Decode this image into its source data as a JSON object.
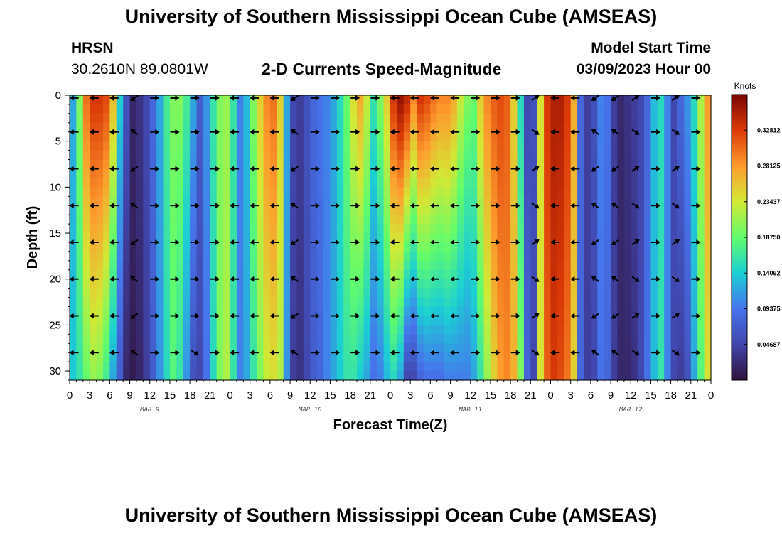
{
  "header": {
    "title": "University of Southern Mississippi Ocean Cube (AMSEAS)",
    "station": "HRSN",
    "coords": "30.2610N  89.0801W",
    "plot_title": "2-D Currents Speed-Magnitude",
    "start_label": "Model Start Time",
    "start_value": "03/09/2023 Hour 00"
  },
  "footer": {
    "title": "University of Southern Mississippi Ocean Cube (AMSEAS)"
  },
  "chart_data": {
    "type": "heatmap",
    "title": "2-D Currents Speed-Magnitude",
    "xlabel": "Forecast Time(Z)",
    "ylabel": "Depth (ft)",
    "xlim": [
      0,
      96
    ],
    "ylim": [
      31,
      0
    ],
    "x_ticks": [
      0,
      3,
      6,
      9,
      12,
      15,
      18,
      21,
      24,
      27,
      30,
      33,
      36,
      39,
      42,
      45,
      48,
      51,
      54,
      57,
      60,
      63,
      66,
      69,
      72,
      75,
      78,
      81,
      84,
      87,
      90,
      93,
      96
    ],
    "x_tick_labels": [
      "0",
      "3",
      "6",
      "9",
      "12",
      "15",
      "18",
      "21",
      "0",
      "3",
      "6",
      "9",
      "12",
      "15",
      "18",
      "21",
      "0",
      "3",
      "6",
      "9",
      "12",
      "15",
      "18",
      "21",
      "0",
      "3",
      "6",
      "9",
      "12",
      "15",
      "18",
      "21",
      "0"
    ],
    "day_labels": [
      {
        "x": 12,
        "label": "MAR 9"
      },
      {
        "x": 36,
        "label": "MAR 10"
      },
      {
        "x": 60,
        "label": "MAR 11"
      },
      {
        "x": 84,
        "label": "MAR 12"
      }
    ],
    "y_ticks": [
      0,
      5,
      10,
      15,
      20,
      25,
      30
    ],
    "y_tick_labels": [
      "0",
      "5",
      "10",
      "15",
      "20",
      "25",
      "30"
    ],
    "colorbar": {
      "unit": "Knots",
      "min": 0,
      "max": 0.375,
      "ticks": [
        0.04687,
        0.09375,
        0.14062,
        0.1875,
        0.23437,
        0.28125,
        0.32812
      ],
      "tick_labels": [
        "0.04687",
        "0.09375",
        "0.14062",
        "0.18750",
        "0.23437",
        "0.28125",
        "0.32812"
      ]
    },
    "speed_profile": {
      "hours": [
        0,
        1,
        2,
        3,
        4,
        5,
        6,
        7,
        8,
        9,
        10,
        11,
        12,
        13,
        14,
        15,
        16,
        17,
        18,
        19,
        20,
        21,
        22,
        23,
        24,
        25,
        26,
        27,
        28,
        29,
        30,
        31,
        32,
        33,
        34,
        35,
        36,
        37,
        38,
        39,
        40,
        41,
        42,
        43,
        44,
        45,
        46,
        47,
        48,
        49,
        50,
        51,
        52,
        53,
        54,
        55,
        56,
        57,
        58,
        59,
        60,
        61,
        62,
        63,
        64,
        65,
        66,
        67,
        68,
        69,
        70,
        71,
        72,
        73,
        74,
        75,
        76,
        77,
        78,
        79,
        80,
        81,
        82,
        83,
        84,
        85,
        86,
        87,
        88,
        89,
        90,
        91,
        92,
        93,
        94,
        95
      ],
      "surface_knots": [
        0.12,
        0.2,
        0.3,
        0.33,
        0.33,
        0.32,
        0.26,
        0.14,
        0.06,
        0.02,
        0.03,
        0.05,
        0.08,
        0.12,
        0.17,
        0.2,
        0.2,
        0.17,
        0.12,
        0.07,
        0.11,
        0.16,
        0.2,
        0.21,
        0.16,
        0.1,
        0.13,
        0.2,
        0.25,
        0.29,
        0.3,
        0.25,
        0.12,
        0.05,
        0.04,
        0.06,
        0.08,
        0.09,
        0.1,
        0.12,
        0.15,
        0.19,
        0.24,
        0.27,
        0.23,
        0.16,
        0.2,
        0.25,
        0.33,
        0.36,
        0.34,
        0.29,
        0.33,
        0.32,
        0.3,
        0.29,
        0.29,
        0.27,
        0.23,
        0.2,
        0.19,
        0.25,
        0.29,
        0.31,
        0.32,
        0.31,
        0.25,
        0.15,
        0.05,
        0.06,
        0.24,
        0.33,
        0.35,
        0.35,
        0.33,
        0.27,
        0.08,
        0.04,
        0.06,
        0.1,
        0.09,
        0.04,
        0.02,
        0.03,
        0.04,
        0.05,
        0.08,
        0.13,
        0.15,
        0.1,
        0.05,
        0.08,
        0.11,
        0.15,
        0.22,
        0.28
      ],
      "bottom_knots": [
        0.14,
        0.16,
        0.19,
        0.21,
        0.2,
        0.17,
        0.12,
        0.07,
        0.02,
        0.01,
        0.02,
        0.04,
        0.07,
        0.11,
        0.15,
        0.18,
        0.16,
        0.11,
        0.06,
        0.05,
        0.09,
        0.15,
        0.2,
        0.22,
        0.16,
        0.1,
        0.12,
        0.16,
        0.2,
        0.23,
        0.24,
        0.22,
        0.11,
        0.04,
        0.03,
        0.05,
        0.07,
        0.08,
        0.1,
        0.12,
        0.14,
        0.16,
        0.16,
        0.14,
        0.12,
        0.09,
        0.1,
        0.13,
        0.15,
        0.12,
        0.05,
        0.05,
        0.08,
        0.09,
        0.09,
        0.09,
        0.1,
        0.1,
        0.1,
        0.1,
        0.12,
        0.16,
        0.21,
        0.25,
        0.28,
        0.29,
        0.27,
        0.2,
        0.08,
        0.05,
        0.24,
        0.31,
        0.33,
        0.32,
        0.3,
        0.25,
        0.08,
        0.04,
        0.05,
        0.09,
        0.08,
        0.04,
        0.02,
        0.02,
        0.03,
        0.05,
        0.09,
        0.13,
        0.16,
        0.1,
        0.05,
        0.04,
        0.06,
        0.12,
        0.18,
        0.24
      ]
    },
    "vectors": {
      "times": [
        0,
        3,
        6,
        9,
        12,
        15,
        18,
        21,
        24,
        27,
        30,
        33,
        36,
        39,
        42,
        45,
        48,
        51,
        54,
        57,
        60,
        63,
        66,
        69,
        72,
        75,
        78,
        81,
        84,
        87,
        90,
        93
      ],
      "depths": [
        0,
        4,
        8,
        12,
        16,
        20,
        24,
        28
      ],
      "direction": "mostly east-west oscillation"
    }
  }
}
